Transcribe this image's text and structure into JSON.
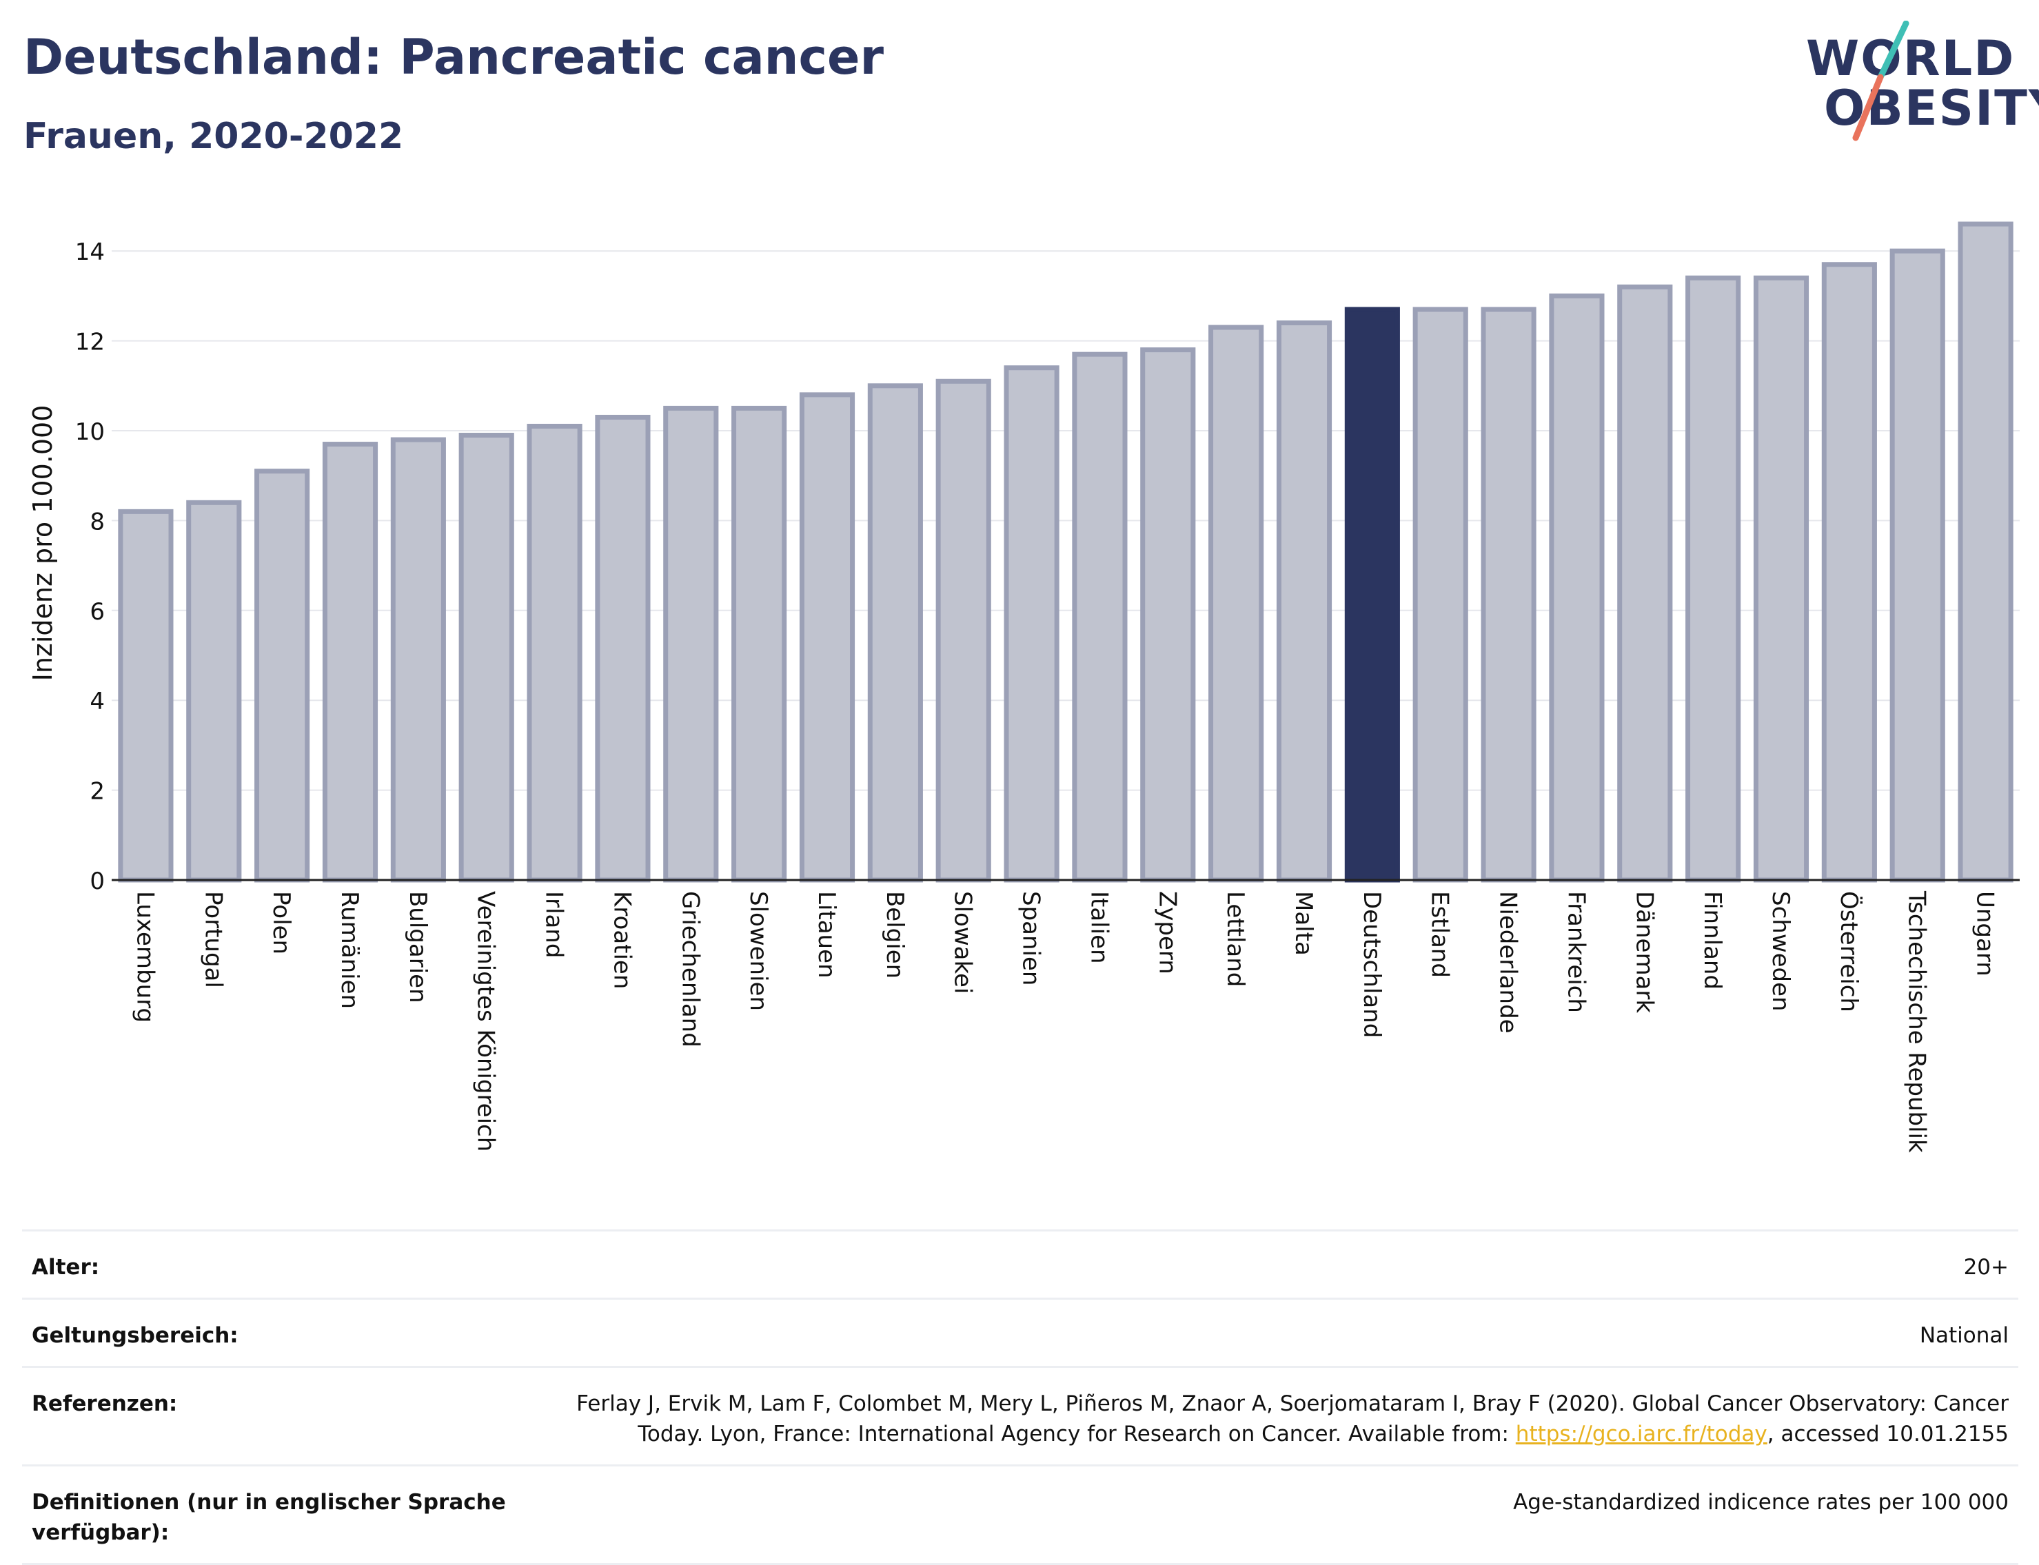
{
  "header": {
    "title": "Deutschland: Pancreatic cancer",
    "subtitle": "Frauen, 2020-2022"
  },
  "logo": {
    "line1": "WORLD",
    "line2": "OBESITY",
    "colors": {
      "text": "#2b3560",
      "slash_teal": "#3fbfb5",
      "slash_coral": "#e9735c"
    }
  },
  "chart_data": {
    "type": "bar",
    "title": "Deutschland: Pancreatic cancer",
    "subtitle": "Frauen, 2020-2022",
    "xlabel": "",
    "ylabel": "Inzidenz pro 100.000",
    "ylim": [
      0,
      15
    ],
    "yticks": [
      0,
      2,
      4,
      6,
      8,
      10,
      12,
      14
    ],
    "grid": true,
    "highlight": "Deutschland",
    "colors": {
      "bar": "#c0c3cf",
      "bar_border": "#9ba0b6",
      "highlight": "#2b3560"
    },
    "categories": [
      "Luxemburg",
      "Portugal",
      "Polen",
      "Rumänien",
      "Bulgarien",
      "Vereinigtes Königreich",
      "Irland",
      "Kroatien",
      "Griechenland",
      "Slowenien",
      "Litauen",
      "Belgien",
      "Slowakei",
      "Spanien",
      "Italien",
      "Zypern",
      "Lettland",
      "Malta",
      "Deutschland",
      "Estland",
      "Niederlande",
      "Frankreich",
      "Dänemark",
      "Finnland",
      "Schweden",
      "Österreich",
      "Tschechische Republik",
      "Ungarn"
    ],
    "values": [
      8.2,
      8.4,
      9.1,
      9.7,
      9.8,
      9.9,
      10.1,
      10.3,
      10.5,
      10.5,
      10.8,
      11.0,
      11.1,
      11.4,
      11.7,
      11.8,
      12.3,
      12.4,
      12.7,
      12.7,
      12.7,
      13.0,
      13.2,
      13.4,
      13.4,
      13.7,
      14.0,
      14.6
    ]
  },
  "footer": {
    "age_label": "Alter:",
    "age_value": "20+",
    "scope_label": "Geltungsbereich:",
    "scope_value": "National",
    "refs_label": "Referenzen:",
    "refs_line1": "Ferlay J, Ervik M, Lam F, Colombet M, Mery L, Piñeros M, Znaor A, Soerjomataram I, Bray F (2020). Global Cancer Observatory: Cancer",
    "refs_line2_pre": "Today. Lyon, France: International Agency for Research on Cancer. Available from: ",
    "refs_link": "https://gco.iarc.fr/today",
    "refs_line2_post": ", accessed 10.01.2155",
    "defs_label": "Definitionen (nur in englischer Sprache verfügbar):",
    "defs_value": "Age-standardized indicence rates per 100 000"
  }
}
